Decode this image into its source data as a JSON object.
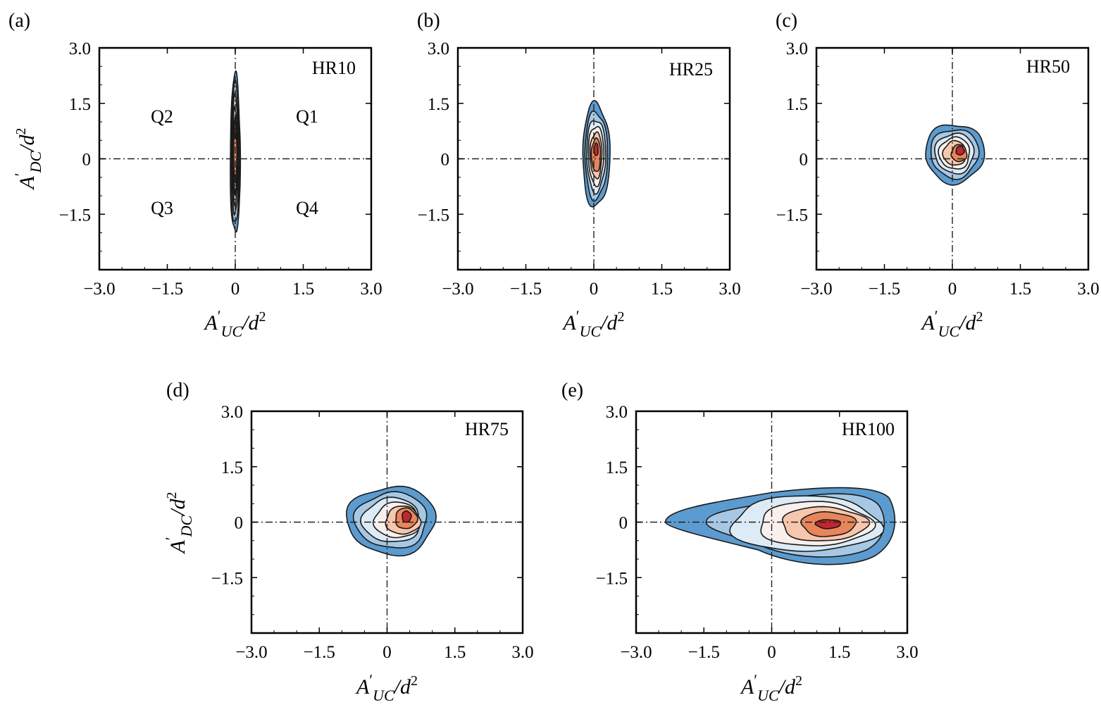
{
  "figure": {
    "panels_count": 5
  },
  "chart_data": [
    {
      "type": "contour",
      "panel_label": "(a)",
      "case_label": "HR10",
      "quadrant_labels": [
        "Q1",
        "Q2",
        "Q3",
        "Q4"
      ],
      "xlabel": "A'UC/d2",
      "ylabel": "A'DC/d2",
      "xlim": [
        -3.0,
        3.0
      ],
      "ylim": [
        -3.0,
        3.0
      ],
      "xticks": [
        "−3.0",
        "−1.5",
        "0",
        "1.5",
        "3.0"
      ],
      "yticks": [
        "3.0",
        "1.5",
        "0",
        "−1.5"
      ],
      "reference_lines": {
        "x": 0,
        "y": 0,
        "style": "dash-dot"
      },
      "contours": {
        "center": [
          0.0,
          0.1
        ],
        "levels": [
          {
            "rx": 0.11,
            "ry": 2.15,
            "fill": "#5b9bcf"
          },
          {
            "rx": 0.09,
            "ry": 1.9,
            "fill": "#a6c8e4"
          },
          {
            "rx": 0.07,
            "ry": 1.6,
            "fill": "#dcebf6"
          },
          {
            "rx": 0.055,
            "ry": 1.3,
            "fill": "#f8f0ec"
          },
          {
            "rx": 0.045,
            "ry": 1.0,
            "fill": "#f6c7ad"
          },
          {
            "rx": 0.035,
            "ry": 0.7,
            "fill": "#e8855b"
          },
          {
            "rx": 0.02,
            "ry": 0.3,
            "fill": "#c0272d",
            "dy": 0.75
          }
        ]
      }
    },
    {
      "type": "contour",
      "panel_label": "(b)",
      "case_label": "HR25",
      "xlabel": "A'UC/d2",
      "xlim": [
        -3.0,
        3.0
      ],
      "ylim": [
        -3.0,
        3.0
      ],
      "xticks": [
        "−3.0",
        "−1.5",
        "0",
        "1.5",
        "3.0"
      ],
      "yticks": [
        "3.0",
        "1.5",
        "0",
        "−1.5"
      ],
      "reference_lines": {
        "x": 0,
        "y": 0,
        "style": "dash-dot"
      },
      "contours": {
        "center": [
          0.05,
          0.1
        ],
        "levels": [
          {
            "rx": 0.3,
            "ry": 1.4,
            "fill": "#5b9bcf"
          },
          {
            "rx": 0.25,
            "ry": 1.18,
            "fill": "#a6c8e4"
          },
          {
            "rx": 0.21,
            "ry": 0.98,
            "fill": "#dcebf6"
          },
          {
            "rx": 0.17,
            "ry": 0.8,
            "fill": "#f8f0ec"
          },
          {
            "rx": 0.13,
            "ry": 0.62,
            "fill": "#f6c7ad"
          },
          {
            "rx": 0.1,
            "ry": 0.45,
            "fill": "#e8855b"
          },
          {
            "rx": 0.045,
            "ry": 0.17,
            "fill": "#c0272d",
            "dy": 0.15
          }
        ]
      }
    },
    {
      "type": "contour",
      "panel_label": "(c)",
      "case_label": "HR50",
      "xlabel": "A'UC/d2",
      "xlim": [
        -3.0,
        3.0
      ],
      "ylim": [
        -3.0,
        3.0
      ],
      "xticks": [
        "−3.0",
        "−1.5",
        "0",
        "1.5",
        "3.0"
      ],
      "yticks": [
        "3.0",
        "1.5",
        "0",
        "−1.5"
      ],
      "reference_lines": {
        "x": 0,
        "y": 0,
        "style": "dash-dot"
      },
      "contours": {
        "center": [
          0.05,
          0.15
        ],
        "levels": [
          {
            "rx": 0.65,
            "ry": 0.8,
            "fill": "#5b9bcf"
          },
          {
            "rx": 0.53,
            "ry": 0.66,
            "fill": "#a6c8e4"
          },
          {
            "rx": 0.43,
            "ry": 0.54,
            "fill": "#dcebf6"
          },
          {
            "rx": 0.34,
            "ry": 0.43,
            "fill": "#f8f0ec"
          },
          {
            "rx": 0.25,
            "ry": 0.33,
            "fill": "#f6c7ad"
          },
          {
            "rx": 0.17,
            "ry": 0.23,
            "fill": "#e8855b",
            "dx": 0.1
          },
          {
            "rx": 0.09,
            "ry": 0.12,
            "fill": "#c0272d",
            "dx": 0.12,
            "dy": 0.07
          }
        ]
      }
    },
    {
      "type": "contour",
      "panel_label": "(d)",
      "case_label": "HR75",
      "xlabel": "A'UC/d2",
      "ylabel": "A'DC/d2",
      "xlim": [
        -3.0,
        3.0
      ],
      "ylim": [
        -3.0,
        3.0
      ],
      "xticks": [
        "−3.0",
        "−1.5",
        "0",
        "1.5",
        "3.0"
      ],
      "yticks": [
        "3.0",
        "1.5",
        "0",
        "−1.5"
      ],
      "reference_lines": {
        "x": 0,
        "y": 0,
        "style": "dash-dot"
      },
      "contours": {
        "center": [
          0.1,
          0.05
        ],
        "levels": [
          {
            "rx": 0.98,
            "ry": 0.92,
            "fill": "#5b9bcf"
          },
          {
            "rx": 0.8,
            "ry": 0.75,
            "fill": "#a6c8e4"
          },
          {
            "rx": 0.64,
            "ry": 0.6,
            "fill": "#dcebf6"
          },
          {
            "rx": 0.5,
            "ry": 0.48,
            "fill": "#f8f0ec",
            "dx": 0.12
          },
          {
            "rx": 0.38,
            "ry": 0.38,
            "fill": "#f6c7ad",
            "dx": 0.25
          },
          {
            "rx": 0.24,
            "ry": 0.28,
            "fill": "#e8855b",
            "dx": 0.32,
            "dy": 0.05
          },
          {
            "rx": 0.1,
            "ry": 0.15,
            "fill": "#c0272d",
            "dx": 0.33,
            "dy": 0.1
          }
        ]
      }
    },
    {
      "type": "contour",
      "panel_label": "(e)",
      "case_label": "HR100",
      "xlabel": "A'UC/d2",
      "xlim": [
        -3.0,
        3.0
      ],
      "ylim": [
        -3.0,
        3.0
      ],
      "xticks": [
        "−3.0",
        "−1.5",
        "0",
        "1.5",
        "3.0"
      ],
      "yticks": [
        "3.0",
        "1.5",
        "0",
        "−1.5"
      ],
      "reference_lines": {
        "x": 0,
        "y": 0,
        "style": "dash-dot"
      },
      "contours": {
        "center": [
          0.2,
          -0.05
        ],
        "levels": [
          {
            "rx": 2.6,
            "ry": 1.05,
            "fill": "#5b9bcf"
          },
          {
            "rx": 2.05,
            "ry": 0.9,
            "fill": "#a6c8e4",
            "dx": 0.3
          },
          {
            "rx": 1.65,
            "ry": 0.75,
            "fill": "#dcebf6",
            "dx": 0.55
          },
          {
            "rx": 1.25,
            "ry": 0.6,
            "fill": "#f8f0ec",
            "dx": 0.75
          },
          {
            "rx": 0.95,
            "ry": 0.46,
            "fill": "#f6c7ad",
            "dx": 0.95
          },
          {
            "rx": 0.6,
            "ry": 0.33,
            "fill": "#e8855b",
            "dx": 1.05
          },
          {
            "rx": 0.28,
            "ry": 0.12,
            "fill": "#c0272d",
            "dx": 1.05
          }
        ]
      }
    }
  ]
}
